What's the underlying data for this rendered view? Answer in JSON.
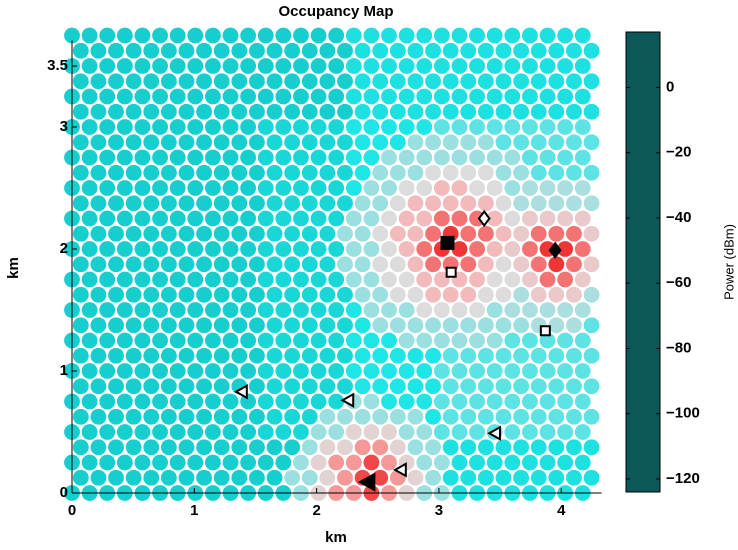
{
  "chart_data": {
    "type": "hexmap",
    "title": "Occupancy Map",
    "xlabel": "km",
    "ylabel": "km",
    "xlim": [
      0,
      4.33
    ],
    "ylim": [
      0,
      3.71
    ],
    "xticks": [
      0,
      1,
      2,
      3,
      4
    ],
    "yticks": [
      0,
      1,
      2,
      3,
      3.5
    ],
    "x": [
      0,
      0.144,
      0.288,
      0.432,
      0.576,
      0.72,
      0.864,
      1.008,
      1.152,
      1.296,
      1.44,
      1.584,
      1.728,
      1.872,
      2.016,
      2.16,
      2.304,
      2.448,
      2.592,
      2.736,
      2.88,
      3.024,
      3.168,
      3.312,
      3.456,
      3.6,
      3.744,
      3.888,
      4.032,
      4.176
    ],
    "x_odd": [
      0.072,
      0.216,
      0.36,
      0.504,
      0.648,
      0.792,
      0.936,
      1.08,
      1.224,
      1.368,
      1.512,
      1.656,
      1.8,
      1.944,
      2.088,
      2.232,
      2.376,
      2.52,
      2.664,
      2.808,
      2.952,
      3.096,
      3.24,
      3.384,
      3.528,
      3.672,
      3.816,
      3.96,
      4.104,
      4.248
    ],
    "y": [
      0,
      0.125,
      0.25,
      0.375,
      0.5,
      0.625,
      0.75,
      0.875,
      1,
      1.125,
      1.25,
      1.375,
      1.5,
      1.625,
      1.75,
      1.875,
      2,
      2.125,
      2.25,
      2.375,
      2.5,
      2.625,
      2.75,
      2.875,
      3,
      3.125,
      3.25,
      3.375,
      3.5,
      3.625,
      3.75
    ],
    "values": [
      [
        -98,
        -98,
        -98,
        -98,
        -98,
        -98,
        -98,
        -98,
        -98,
        -98,
        -98,
        -98,
        -98,
        -80,
        -70,
        -60,
        -60,
        -48,
        -60,
        -70,
        -80,
        -80,
        -92,
        -92,
        -92,
        -92,
        -92,
        -92,
        -92,
        -92
      ],
      [
        -98,
        -98,
        -98,
        -98,
        -98,
        -98,
        -98,
        -98,
        -98,
        -98,
        -98,
        -98,
        -80,
        -80,
        -70,
        -60,
        -48,
        -48,
        -60,
        -70,
        -80,
        -92,
        -92,
        -92,
        -92,
        -92,
        -92,
        -92,
        -92,
        -92
      ],
      [
        -98,
        -98,
        -98,
        -98,
        -98,
        -98,
        -98,
        -98,
        -98,
        -98,
        -98,
        -98,
        -98,
        -80,
        -70,
        -60,
        -60,
        -48,
        -60,
        -70,
        -80,
        -80,
        -92,
        -92,
        -92,
        -92,
        -92,
        -92,
        -92,
        -92
      ],
      [
        -98,
        -98,
        -98,
        -98,
        -98,
        -98,
        -98,
        -98,
        -98,
        -98,
        -98,
        -98,
        -98,
        -80,
        -70,
        -70,
        -60,
        -60,
        -70,
        -80,
        -80,
        -92,
        -92,
        -92,
        -92,
        -92,
        -92,
        -92,
        -92,
        -92
      ],
      [
        -98,
        -98,
        -98,
        -98,
        -98,
        -98,
        -98,
        -98,
        -98,
        -98,
        -98,
        -95,
        -95,
        -95,
        -80,
        -80,
        -70,
        -70,
        -70,
        -80,
        -80,
        -85,
        -85,
        -85,
        -85,
        -85,
        -85,
        -85,
        -85,
        -85
      ],
      [
        -98,
        -98,
        -98,
        -98,
        -98,
        -98,
        -98,
        -98,
        -98,
        -98,
        -98,
        -95,
        -95,
        -95,
        -80,
        -80,
        -80,
        -80,
        -80,
        -80,
        -90,
        -85,
        -85,
        -85,
        -85,
        -85,
        -85,
        -85,
        -85,
        -85
      ],
      [
        -98,
        -98,
        -98,
        -98,
        -98,
        -98,
        -98,
        -98,
        -98,
        -98,
        -98,
        -95,
        -95,
        -95,
        -95,
        -95,
        -80,
        -80,
        -90,
        -90,
        -90,
        -85,
        -85,
        -85,
        -85,
        -85,
        -85,
        -85,
        -85,
        -85
      ],
      [
        -98,
        -98,
        -98,
        -98,
        -98,
        -98,
        -98,
        -98,
        -98,
        -98,
        -98,
        -95,
        -95,
        -95,
        -95,
        -95,
        -90,
        -90,
        -90,
        -90,
        -90,
        -85,
        -85,
        -85,
        -85,
        -85,
        -85,
        -85,
        -85,
        -85
      ],
      [
        -98,
        -98,
        -98,
        -98,
        -98,
        -98,
        -98,
        -98,
        -98,
        -98,
        -98,
        -95,
        -95,
        -95,
        -95,
        -95,
        -90,
        -90,
        -90,
        -90,
        -90,
        -85,
        -85,
        -85,
        -85,
        -85,
        -85,
        -85,
        -85,
        -85
      ],
      [
        -98,
        -98,
        -98,
        -98,
        -98,
        -98,
        -98,
        -98,
        -98,
        -98,
        -98,
        -95,
        -95,
        -95,
        -95,
        -95,
        -90,
        -90,
        -90,
        -90,
        -90,
        -85,
        -85,
        -85,
        -85,
        -85,
        -85,
        -85,
        -85,
        -85
      ],
      [
        -98,
        -98,
        -98,
        -98,
        -98,
        -98,
        -98,
        -98,
        -98,
        -98,
        -98,
        -95,
        -95,
        -95,
        -95,
        -95,
        -90,
        -90,
        -90,
        -80,
        -80,
        -80,
        -80,
        -80,
        -80,
        -85,
        -85,
        -85,
        -85,
        -85
      ],
      [
        -98,
        -98,
        -98,
        -98,
        -98,
        -98,
        -98,
        -98,
        -98,
        -98,
        -98,
        -95,
        -95,
        -95,
        -95,
        -95,
        -90,
        -80,
        -80,
        -80,
        -80,
        -80,
        -80,
        -80,
        -80,
        -80,
        -78,
        -78,
        -78,
        -85
      ],
      [
        -98,
        -98,
        -98,
        -98,
        -98,
        -98,
        -98,
        -98,
        -98,
        -98,
        -98,
        -95,
        -95,
        -95,
        -95,
        -95,
        -90,
        -80,
        -80,
        -80,
        -72,
        -72,
        -72,
        -72,
        -80,
        -78,
        -78,
        -78,
        -78,
        -78
      ],
      [
        -98,
        -98,
        -98,
        -98,
        -98,
        -98,
        -98,
        -98,
        -98,
        -98,
        -98,
        -95,
        -95,
        -95,
        -95,
        -95,
        -80,
        -80,
        -72,
        -72,
        -65,
        -65,
        -65,
        -72,
        -72,
        -78,
        -68,
        -68,
        -68,
        -78
      ],
      [
        -98,
        -98,
        -98,
        -98,
        -98,
        -98,
        -98,
        -98,
        -98,
        -98,
        -98,
        -95,
        -95,
        -95,
        -95,
        -95,
        -80,
        -80,
        -72,
        -72,
        -65,
        -65,
        -65,
        -65,
        -72,
        -72,
        -68,
        -55,
        -55,
        -68
      ],
      [
        -98,
        -98,
        -98,
        -98,
        -98,
        -98,
        -98,
        -98,
        -98,
        -98,
        -98,
        -95,
        -95,
        -95,
        -95,
        -80,
        -80,
        -72,
        -72,
        -65,
        -55,
        -55,
        -55,
        -65,
        -72,
        -68,
        -55,
        -45,
        -55,
        -68
      ],
      [
        -98,
        -98,
        -98,
        -98,
        -98,
        -98,
        -98,
        -98,
        -98,
        -98,
        -98,
        -95,
        -95,
        -95,
        -95,
        -95,
        -80,
        -80,
        -72,
        -65,
        -55,
        -45,
        -45,
        -55,
        -65,
        -68,
        -55,
        -45,
        -45,
        -55
      ],
      [
        -98,
        -98,
        -98,
        -98,
        -98,
        -98,
        -98,
        -98,
        -98,
        -98,
        -98,
        -95,
        -95,
        -95,
        -95,
        -80,
        -80,
        -72,
        -65,
        -65,
        -55,
        -45,
        -55,
        -55,
        -65,
        -68,
        -55,
        -55,
        -55,
        -68
      ],
      [
        -98,
        -98,
        -98,
        -98,
        -98,
        -98,
        -98,
        -98,
        -98,
        -98,
        -98,
        -95,
        -95,
        -95,
        -95,
        -95,
        -80,
        -80,
        -72,
        -65,
        -65,
        -55,
        -55,
        -55,
        -65,
        -72,
        -68,
        -68,
        -68,
        -68
      ],
      [
        -98,
        -98,
        -98,
        -98,
        -98,
        -98,
        -98,
        -98,
        -98,
        -98,
        -98,
        -95,
        -95,
        -95,
        -95,
        -95,
        -80,
        -80,
        -72,
        -65,
        -65,
        -65,
        -65,
        -65,
        -72,
        -78,
        -78,
        -78,
        -78,
        -78
      ],
      [
        -98,
        -98,
        -98,
        -98,
        -98,
        -98,
        -98,
        -98,
        -98,
        -98,
        -98,
        -95,
        -95,
        -95,
        -95,
        -95,
        -90,
        -80,
        -80,
        -72,
        -72,
        -65,
        -65,
        -72,
        -72,
        -80,
        -78,
        -78,
        -78,
        -78
      ],
      [
        -98,
        -98,
        -98,
        -98,
        -98,
        -98,
        -98,
        -98,
        -98,
        -98,
        -98,
        -95,
        -95,
        -95,
        -95,
        -95,
        -90,
        -80,
        -80,
        -80,
        -72,
        -72,
        -72,
        -72,
        -80,
        -80,
        -85,
        -85,
        -85,
        -85
      ],
      [
        -98,
        -98,
        -98,
        -98,
        -98,
        -98,
        -98,
        -98,
        -98,
        -98,
        -98,
        -95,
        -95,
        -95,
        -95,
        -95,
        -90,
        -90,
        -80,
        -80,
        -80,
        -80,
        -80,
        -80,
        -80,
        -80,
        -85,
        -85,
        -85,
        -85
      ],
      [
        -98,
        -98,
        -98,
        -98,
        -98,
        -98,
        -98,
        -98,
        -98,
        -98,
        -98,
        -95,
        -95,
        -95,
        -95,
        -95,
        -90,
        -90,
        -90,
        -80,
        -80,
        -80,
        -80,
        -80,
        -85,
        -85,
        -85,
        -85,
        -85,
        -85
      ],
      [
        -98,
        -98,
        -98,
        -98,
        -98,
        -98,
        -98,
        -98,
        -98,
        -98,
        -98,
        -95,
        -95,
        -95,
        -95,
        -95,
        -90,
        -90,
        -90,
        -90,
        -90,
        -85,
        -85,
        -85,
        -85,
        -85,
        -85,
        -85,
        -85,
        -85
      ],
      [
        -98,
        -98,
        -98,
        -98,
        -98,
        -98,
        -98,
        -98,
        -98,
        -98,
        -98,
        -98,
        -98,
        -98,
        -98,
        -98,
        -92,
        -92,
        -92,
        -92,
        -92,
        -92,
        -92,
        -92,
        -92,
        -92,
        -92,
        -92,
        -92,
        -92
      ],
      [
        -98,
        -98,
        -98,
        -98,
        -98,
        -98,
        -98,
        -98,
        -98,
        -98,
        -98,
        -98,
        -98,
        -98,
        -98,
        -98,
        -92,
        -92,
        -92,
        -92,
        -92,
        -92,
        -92,
        -92,
        -92,
        -92,
        -92,
        -92,
        -92,
        -92
      ],
      [
        -98,
        -98,
        -98,
        -98,
        -98,
        -98,
        -98,
        -98,
        -98,
        -98,
        -98,
        -98,
        -98,
        -98,
        -98,
        -98,
        -92,
        -92,
        -92,
        -92,
        -92,
        -92,
        -92,
        -92,
        -92,
        -92,
        -92,
        -92,
        -92,
        -92
      ],
      [
        -98,
        -98,
        -98,
        -98,
        -98,
        -98,
        -98,
        -98,
        -98,
        -98,
        -98,
        -98,
        -98,
        -98,
        -98,
        -98,
        -92,
        -92,
        -92,
        -92,
        -92,
        -92,
        -92,
        -92,
        -92,
        -92,
        -92,
        -92,
        -92,
        -92
      ],
      [
        -98,
        -98,
        -98,
        -98,
        -98,
        -98,
        -98,
        -98,
        -98,
        -98,
        -98,
        -98,
        -98,
        -98,
        -98,
        -98,
        -92,
        -92,
        -92,
        -92,
        -92,
        -92,
        -92,
        -92,
        -92,
        -92,
        -92,
        -92,
        -92,
        -92
      ],
      [
        -98,
        -98,
        -98,
        -98,
        -98,
        -98,
        -98,
        -98,
        -98,
        -98,
        -98,
        -98,
        -98,
        -98,
        -98,
        -98,
        -92,
        -92,
        -92,
        -92,
        -92,
        -92,
        -92,
        -92,
        -92,
        -92,
        -92,
        -92,
        -92,
        -92
      ]
    ],
    "colorbar": {
      "label": "Power (dBm)",
      "clim": [
        -124,
        17
      ],
      "ticks": [
        0,
        {
          "value": -20,
          "label": "−20"
        },
        {
          "value": -40,
          "label": "−40"
        },
        {
          "value": -60,
          "label": "−60"
        },
        {
          "value": -80,
          "label": "−80"
        },
        {
          "value": -100,
          "label": "−100"
        },
        {
          "value": -120,
          "label": "−120"
        }
      ],
      "colormap": [
        [
          -124,
          "#0c5858"
        ],
        [
          -112,
          "#109c9c"
        ],
        [
          -100,
          "#14c8c8"
        ],
        [
          -90,
          "#1fe6e6"
        ],
        [
          -80,
          "#9ae0e0"
        ],
        [
          -72,
          "#dcdcdc"
        ],
        [
          -64,
          "#f5b5b5"
        ],
        [
          -54,
          "#f36c6c"
        ],
        [
          -44,
          "#ee3030"
        ],
        [
          -20,
          "#cc1010"
        ],
        [
          17,
          "#7d0000"
        ]
      ]
    },
    "markers": [
      {
        "shape": "square",
        "filled": true,
        "x": 3.07,
        "y": 2.05
      },
      {
        "shape": "square",
        "filled": false,
        "x": 3.1,
        "y": 1.81
      },
      {
        "shape": "square",
        "filled": false,
        "x": 3.87,
        "y": 1.33
      },
      {
        "shape": "diamond",
        "filled": false,
        "x": 3.37,
        "y": 2.25
      },
      {
        "shape": "diamond",
        "filled": true,
        "x": 3.95,
        "y": 1.99
      },
      {
        "shape": "triangle-left",
        "filled": false,
        "x": 1.39,
        "y": 0.83
      },
      {
        "shape": "triangle-left",
        "filled": false,
        "x": 2.26,
        "y": 0.76
      },
      {
        "shape": "triangle-left",
        "filled": false,
        "x": 3.46,
        "y": 0.49
      },
      {
        "shape": "triangle-left",
        "filled": false,
        "x": 2.69,
        "y": 0.19
      },
      {
        "shape": "triangle-left",
        "filled": true,
        "x": 2.42,
        "y": 0.09
      }
    ]
  }
}
